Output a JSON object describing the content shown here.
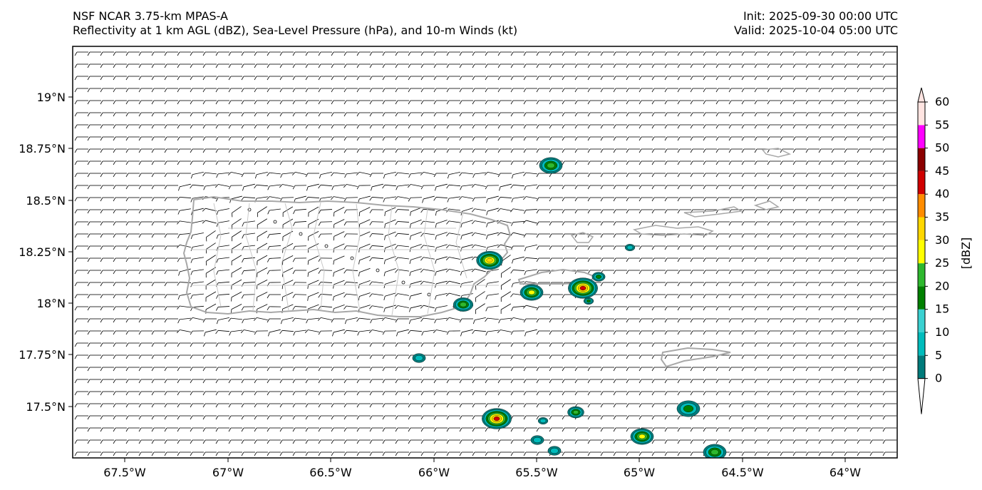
{
  "title": {
    "model": "NSF NCAR 3.75-km MPAS-A",
    "fields": "Reflectivity at 1 km AGL (dBZ), Sea-Level Pressure (hPa), and 10-m Winds (kt)",
    "init": "Init: 2025-09-30 00:00 UTC",
    "valid": "Valid: 2025-10-04 05:00 UTC"
  },
  "axes": {
    "lon_labels": [
      "67.5°W",
      "67°W",
      "66.5°W",
      "66°W",
      "65.5°W",
      "65°W",
      "64.5°W",
      "64°W"
    ],
    "lat_labels": [
      "19°N",
      "18.75°N",
      "18.5°N",
      "18.25°N",
      "18°N",
      "17.75°N",
      "17.5°N"
    ]
  },
  "colorbar": {
    "label": "[dBZ]",
    "ticks": [
      "0",
      "5",
      "10",
      "15",
      "20",
      "25",
      "30",
      "35",
      "40",
      "45",
      "50",
      "55",
      "60"
    ],
    "colors": [
      "#007b7b",
      "#00bcbc",
      "#3ad1d1",
      "#008000",
      "#2eb82e",
      "#ffff00",
      "#ffd700",
      "#ff8c00",
      "#d00000",
      "#8b0000",
      "#ff00ff",
      "#ffe4e1"
    ]
  },
  "colors": {
    "coast": "#a8a8a8",
    "barb": "#000000"
  }
}
